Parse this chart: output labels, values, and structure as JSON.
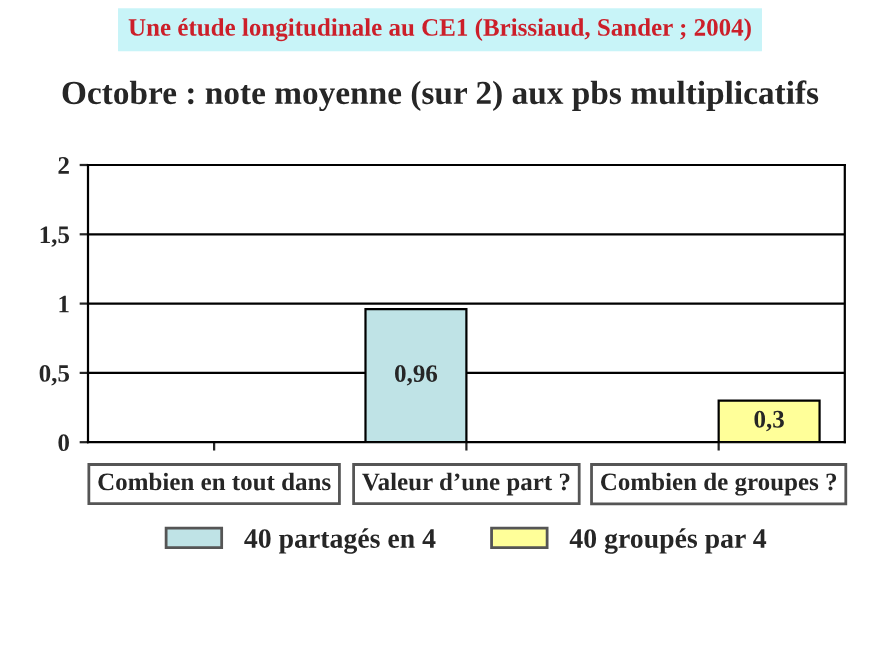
{
  "chart_data": {
    "type": "bar",
    "subtitle": "Une étude longitudinale au CE1 (Brissiaud, Sander ; 2004)",
    "title": "Octobre : note moyenne (sur 2) aux pbs multiplicatifs",
    "categories": [
      "Combien en tout dans",
      "Valeur d’une part ?",
      "Combien de groupes ?"
    ],
    "series": [
      {
        "name": "40 partagés en 4",
        "color": "#bfe3e6",
        "values": [
          null,
          0.96,
          null
        ],
        "value_labels": [
          null,
          "0,96",
          null
        ]
      },
      {
        "name": "40 groupés par 4",
        "color": "#ffff99",
        "values": [
          null,
          null,
          0.3
        ],
        "value_labels": [
          null,
          null,
          "0,3"
        ]
      }
    ],
    "ylim": [
      0,
      2
    ],
    "yticks": [
      0,
      {
        "value": 0.5,
        "label": "0,5"
      },
      1,
      {
        "value": 1.5,
        "label": "1,5"
      },
      2
    ],
    "grid": "y",
    "legend": "bottom"
  }
}
